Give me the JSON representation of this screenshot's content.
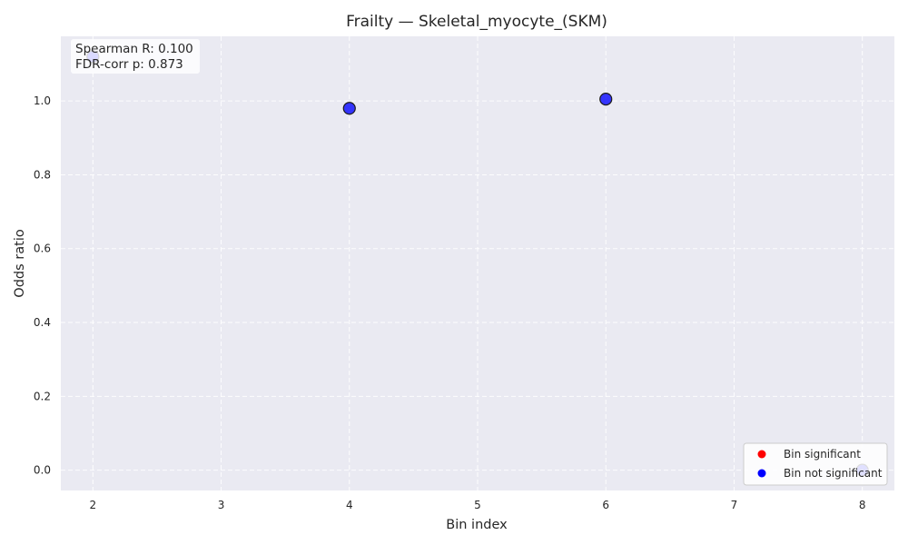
{
  "chart_data": {
    "type": "scatter",
    "title": "Frailty — Skeletal_myocyte_(SKM)",
    "xlabel": "Bin index",
    "ylabel": "Odds ratio",
    "xlim": [
      1.75,
      8.25
    ],
    "ylim": [
      -0.055,
      1.175
    ],
    "x_ticks": [
      "2",
      "3",
      "4",
      "5",
      "6",
      "7",
      "8"
    ],
    "y_ticks": [
      "0.0",
      "0.2",
      "0.4",
      "0.6",
      "0.8",
      "1.0"
    ],
    "grid": true,
    "legend_position": "lower-right",
    "stats": {
      "spearman": "Spearman R: 0.100",
      "fdr": "FDR-corr p: 0.873"
    },
    "legend": [
      {
        "label": "Bin significant",
        "color": "#ff0000"
      },
      {
        "label": "Bin not significant",
        "color": "#0000ff"
      }
    ],
    "points": [
      {
        "x": 2,
        "y": 1.12,
        "significant": false
      },
      {
        "x": 4,
        "y": 0.98,
        "significant": false
      },
      {
        "x": 6,
        "y": 1.005,
        "significant": false
      },
      {
        "x": 8,
        "y": 0.0,
        "significant": false
      }
    ],
    "colors": {
      "plot_bg": "#eaeaf2",
      "not_significant": "#0000ff",
      "significant": "#ff0000"
    }
  }
}
